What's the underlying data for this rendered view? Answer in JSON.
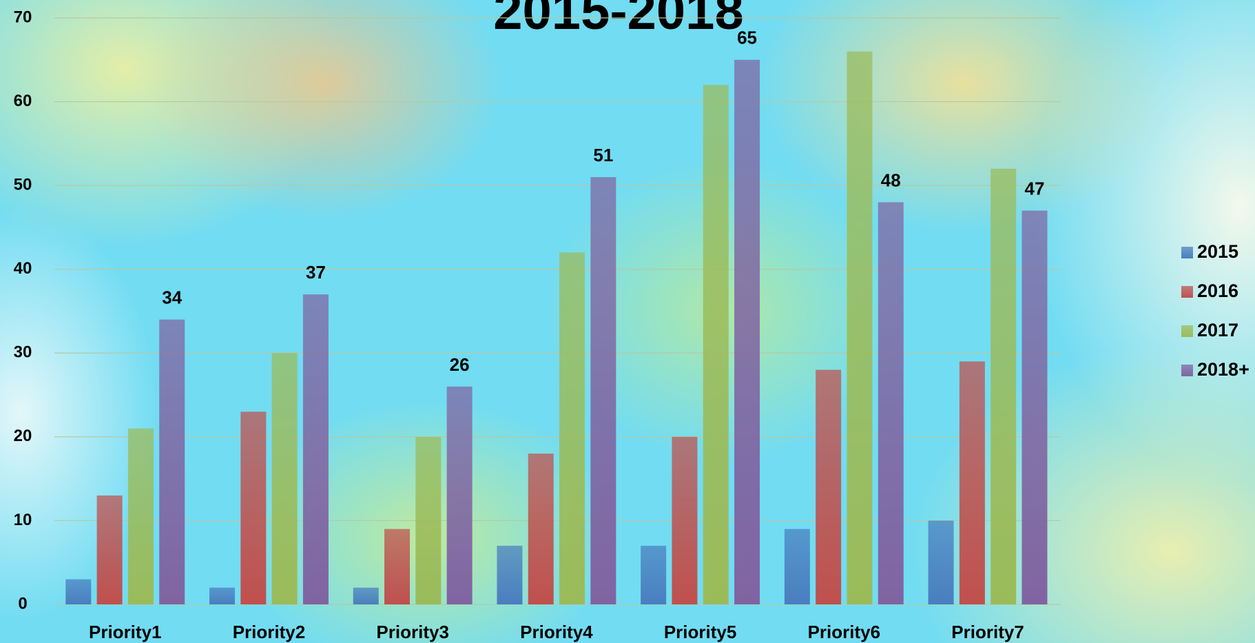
{
  "chart_data": {
    "type": "bar",
    "title": "2015-2018",
    "categories": [
      "Priority1",
      "Priority2",
      "Priority3",
      "Priority4",
      "Priority5",
      "Priority6",
      "Priority7"
    ],
    "series": [
      {
        "name": "2015",
        "color": "#4a7ebf",
        "values": [
          3,
          2,
          2,
          7,
          7,
          9,
          10
        ]
      },
      {
        "name": "2016",
        "color": "#c0504d",
        "values": [
          13,
          23,
          9,
          18,
          20,
          28,
          29
        ]
      },
      {
        "name": "2017",
        "color": "#9bbb59",
        "values": [
          21,
          30,
          20,
          42,
          62,
          66,
          52
        ]
      },
      {
        "name": "2018+",
        "color": "#8064a2",
        "values": [
          34,
          37,
          26,
          51,
          65,
          48,
          47
        ],
        "show_labels": true
      }
    ],
    "ylim": [
      0,
      70
    ],
    "yticks": [
      0,
      10,
      20,
      30,
      40,
      50,
      60,
      70
    ],
    "grid": true,
    "legend": "right"
  }
}
